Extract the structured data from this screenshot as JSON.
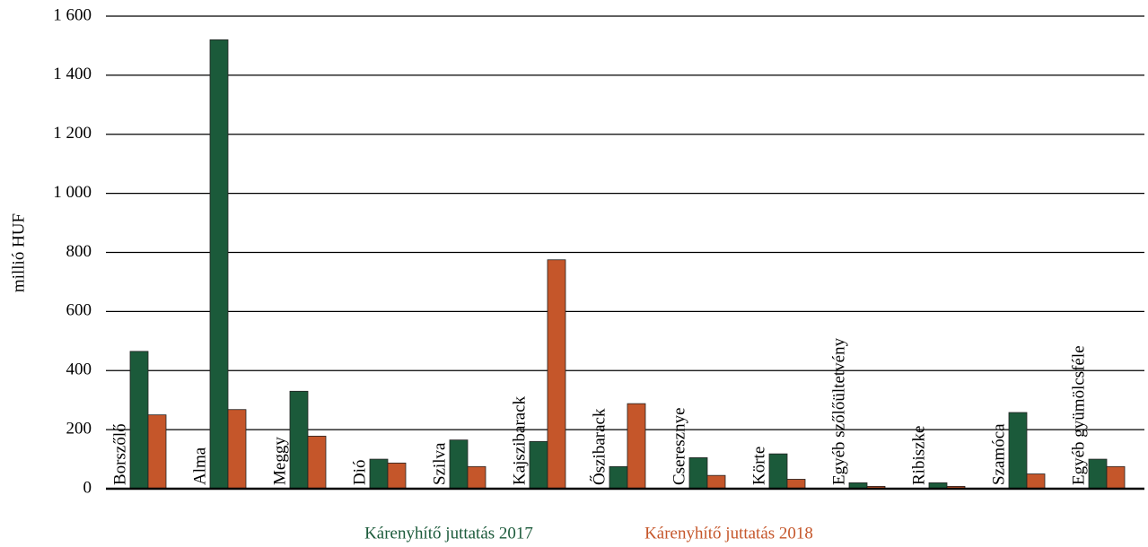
{
  "chart_data": {
    "type": "bar",
    "y_label": "millió HUF",
    "categories": [
      "Borszőlő",
      "Alma",
      "Meggy",
      "Dió",
      "Szilva",
      "Kajszibarack",
      "Őszibarack",
      "Cseresznye",
      "Körte",
      "Egyéb szőlőültetvény",
      "Ribiszke",
      "Szamóca",
      "Egyéb gyümölcsféle"
    ],
    "series": [
      {
        "name": "Kárenyhítő juttatás 2017",
        "color": "#1b5a3a",
        "values": [
          465,
          1520,
          330,
          100,
          165,
          160,
          75,
          105,
          118,
          20,
          20,
          258,
          100
        ]
      },
      {
        "name": "Kárenyhítő juttatás 2018",
        "color": "#c5562a",
        "values": [
          250,
          268,
          178,
          87,
          75,
          775,
          288,
          45,
          32,
          8,
          8,
          50,
          75
        ]
      }
    ],
    "ylim": [
      0,
      1600
    ],
    "yticks": [
      0,
      200,
      400,
      600,
      800,
      {
        "value": 1000,
        "label": "1 000"
      },
      {
        "value": 1200,
        "label": "1 200"
      },
      {
        "value": 1400,
        "label": "1 400"
      },
      {
        "value": 1600,
        "label": "1 600"
      }
    ],
    "grid": true,
    "legend": "bottom"
  }
}
